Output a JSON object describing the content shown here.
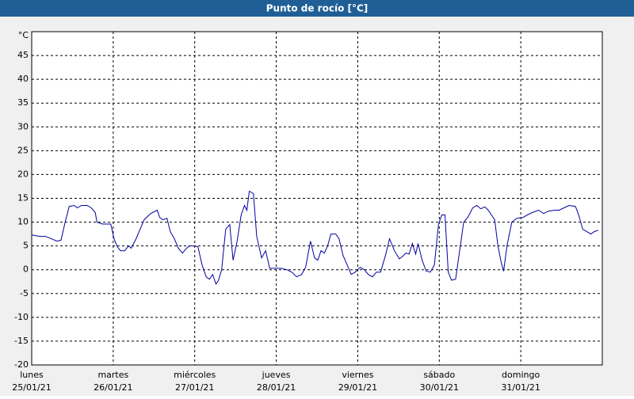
{
  "chart_data": {
    "type": "line",
    "title": "Punto de rocío [°C]",
    "y_unit": "°C",
    "x": [
      0,
      0.1,
      0.17,
      0.24,
      0.31,
      0.36,
      0.41,
      0.46,
      0.52,
      0.56,
      0.61,
      0.68,
      0.73,
      0.78,
      0.8,
      0.87,
      0.97,
      1.01,
      1.05,
      1.09,
      1.14,
      1.19,
      1.22,
      1.28,
      1.33,
      1.38,
      1.46,
      1.54,
      1.57,
      1.61,
      1.66,
      1.7,
      1.75,
      1.8,
      1.85,
      1.9,
      1.94,
      2.0,
      2.04,
      2.09,
      2.14,
      2.18,
      2.22,
      2.26,
      2.29,
      2.33,
      2.38,
      2.43,
      2.47,
      2.52,
      2.57,
      2.61,
      2.64,
      2.67,
      2.72,
      2.76,
      2.82,
      2.87,
      2.92,
      2.99,
      3.06,
      3.13,
      3.19,
      3.25,
      3.31,
      3.36,
      3.42,
      3.47,
      3.51,
      3.55,
      3.59,
      3.63,
      3.67,
      3.73,
      3.77,
      3.82,
      3.87,
      3.92,
      3.97,
      4.03,
      4.08,
      4.13,
      4.18,
      4.23,
      4.28,
      4.34,
      4.39,
      4.45,
      4.51,
      4.55,
      4.59,
      4.63,
      4.67,
      4.71,
      4.74,
      4.79,
      4.84,
      4.89,
      4.94,
      4.99,
      5.03,
      5.07,
      5.11,
      5.15,
      5.2,
      5.25,
      5.3,
      5.35,
      5.41,
      5.46,
      5.51,
      5.56,
      5.6,
      5.64,
      5.68,
      5.72,
      5.76,
      5.79,
      5.83,
      5.89,
      5.95,
      6.03,
      6.08,
      6.14,
      6.22,
      6.28,
      6.34,
      6.42,
      6.47,
      6.53,
      6.59,
      6.67,
      6.71,
      6.76,
      6.81,
      6.86,
      6.9,
      6.95
    ],
    "series": [
      {
        "color": "#0000a0",
        "values": [
          7.3,
          7,
          7,
          6.5,
          6,
          6.2,
          10,
          13.3,
          13.5,
          13,
          13.5,
          13.5,
          13,
          12,
          10,
          9.6,
          9.6,
          6.5,
          4.8,
          4,
          4,
          5,
          4.5,
          6.5,
          8.5,
          10.5,
          11.8,
          12.5,
          11,
          10.5,
          10.8,
          8,
          6.5,
          4.5,
          3.5,
          4.5,
          5,
          5,
          4.8,
          1,
          -1.5,
          -2,
          -1,
          -3,
          -2.3,
          0,
          8.5,
          9.5,
          2,
          6,
          11.5,
          13.5,
          12.5,
          16.5,
          16,
          7,
          2.5,
          4,
          0.3,
          0.3,
          0.3,
          0,
          -0.5,
          -1.5,
          -1,
          0.5,
          6,
          2.5,
          2,
          4,
          3.5,
          5,
          7.5,
          7.5,
          6.5,
          3,
          1,
          -1,
          -0.5,
          0.5,
          0,
          -1,
          -1.5,
          -0.5,
          -0.5,
          3,
          6.5,
          4,
          2.3,
          2.8,
          3.5,
          3.3,
          5.5,
          3.3,
          5.5,
          2,
          -0.3,
          -0.5,
          1,
          9.5,
          11.5,
          11.5,
          -0.5,
          -2.2,
          -2,
          4,
          10,
          11,
          13,
          13.5,
          12.8,
          13.2,
          12.5,
          11.5,
          10.5,
          5,
          1.5,
          -0.3,
          5,
          10,
          10.8,
          11,
          11.5,
          12,
          12.5,
          11.8,
          12.3,
          12.5,
          12.5,
          13,
          13.5,
          13.3,
          11.5,
          8.5,
          8,
          7.5,
          8,
          8.3
        ]
      }
    ],
    "xlim": [
      0,
      7
    ],
    "xticks": [
      {
        "value": 0,
        "label": "lunes"
      },
      {
        "value": 1,
        "label": "martes"
      },
      {
        "value": 2,
        "label": "miércoles"
      },
      {
        "value": 3,
        "label": "jueves"
      },
      {
        "value": 4,
        "label": "viernes"
      },
      {
        "value": 5,
        "label": "sábado"
      },
      {
        "value": 6,
        "label": "domingo"
      }
    ],
    "xtick_dates": [
      "25/01/21",
      "26/01/21",
      "27/01/21",
      "28/01/21",
      "29/01/21",
      "30/01/21",
      "31/01/21"
    ],
    "ylim": [
      -20,
      50
    ],
    "yticks": [
      -20,
      -15,
      -10,
      -5,
      0,
      5,
      10,
      15,
      20,
      25,
      30,
      35,
      40,
      45
    ],
    "grid": true
  }
}
